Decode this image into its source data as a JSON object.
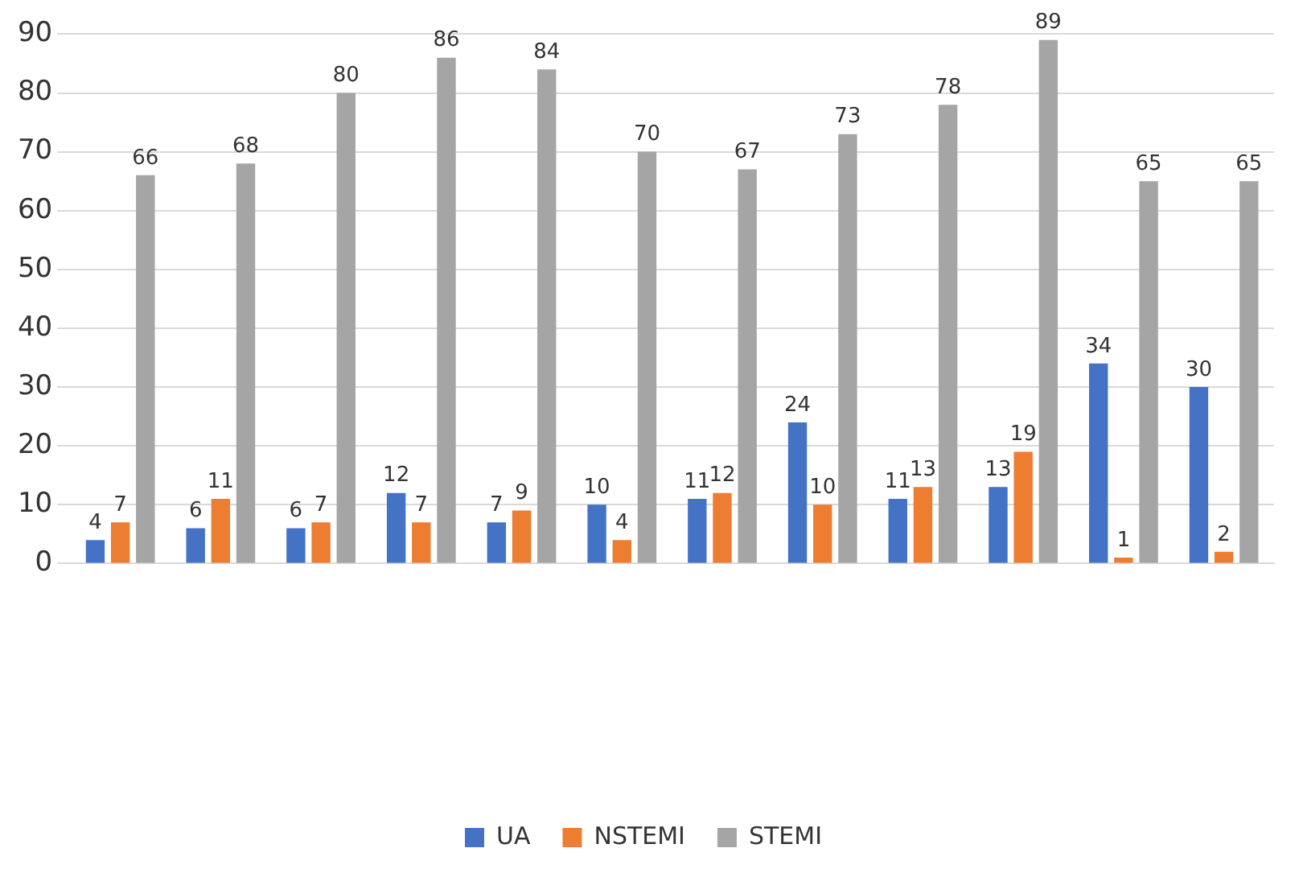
{
  "chart_data": {
    "type": "bar",
    "categories": [
      null,
      null,
      null,
      null,
      null,
      null,
      null,
      null,
      null,
      null,
      null,
      null
    ],
    "series": [
      {
        "name": "UA",
        "color": "#4472c4",
        "values": [
          4,
          6,
          6,
          12,
          7,
          10,
          11,
          24,
          11,
          13,
          34,
          30
        ]
      },
      {
        "name": "NSTEMI",
        "color": "#ed7d31",
        "values": [
          7,
          11,
          7,
          7,
          9,
          4,
          12,
          10,
          13,
          19,
          1,
          2
        ]
      },
      {
        "name": "STEMI",
        "color": "#a5a5a5",
        "values": [
          66,
          68,
          80,
          86,
          84,
          70,
          67,
          73,
          78,
          89,
          65,
          65
        ]
      }
    ],
    "ylim": [
      0,
      90
    ],
    "yticks": [
      0,
      10,
      20,
      30,
      40,
      50,
      60,
      70,
      80,
      90
    ],
    "grid": "y",
    "legend": "bottom",
    "data_labels": true
  }
}
